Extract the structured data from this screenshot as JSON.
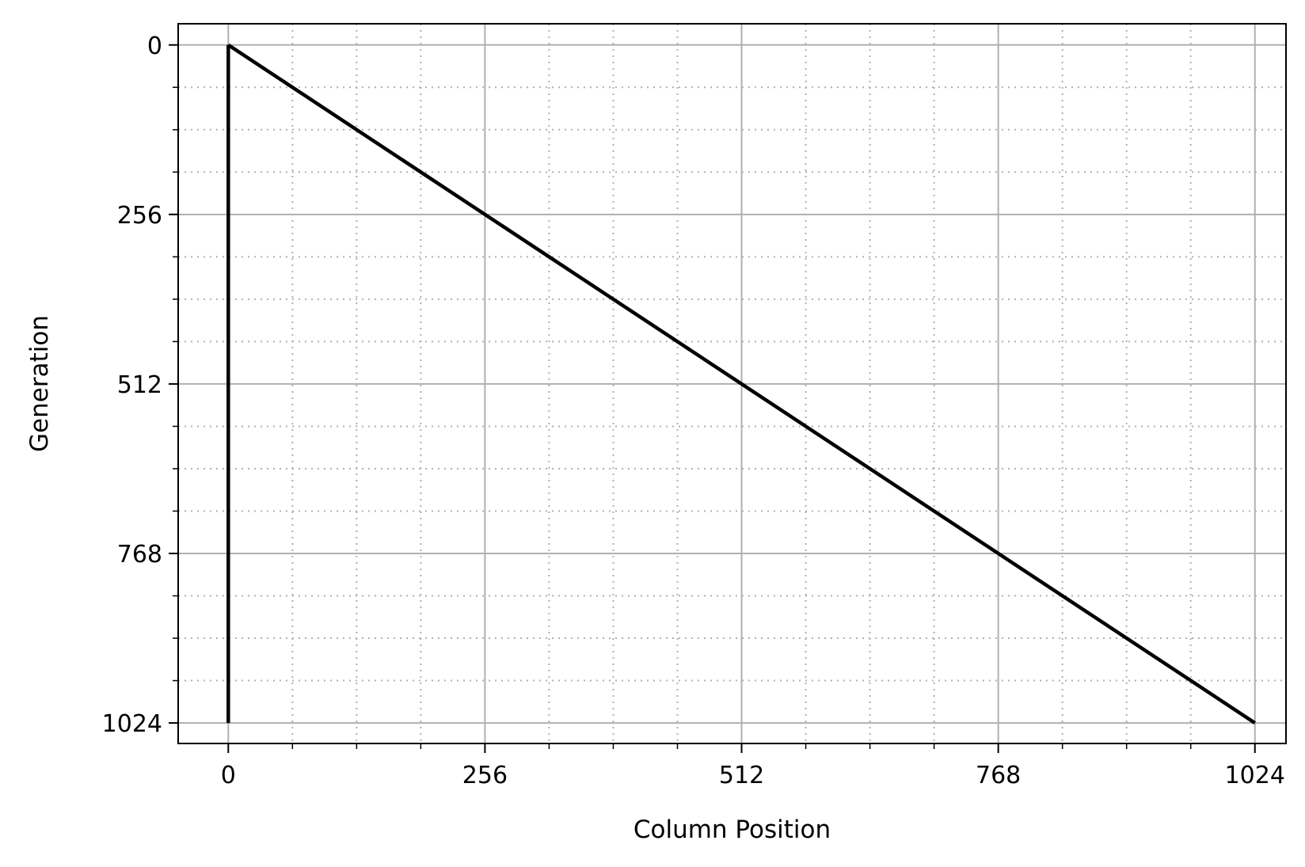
{
  "chart_data": {
    "type": "line",
    "title": "",
    "xlabel": "Column Position",
    "ylabel": "Generation",
    "xlim": [
      -50,
      1055
    ],
    "ylim": [
      1055,
      -32
    ],
    "y_inverted": true,
    "x_ticks": [
      0,
      256,
      512,
      768,
      1024
    ],
    "x_tick_labels": [
      "0",
      "256",
      "512",
      "768",
      "1024"
    ],
    "x_minor_ticks": [
      64,
      128,
      192,
      320,
      384,
      448,
      576,
      640,
      704,
      832,
      896,
      960
    ],
    "y_ticks": [
      0,
      256,
      512,
      768,
      1024
    ],
    "y_tick_labels": [
      "0",
      "256",
      "512",
      "768",
      "1024"
    ],
    "y_minor_ticks": [
      64,
      128,
      192,
      320,
      384,
      448,
      576,
      640,
      704,
      832,
      896,
      960
    ],
    "grid": {
      "major": "solid",
      "minor": "dotted"
    },
    "series": [
      {
        "name": "",
        "color": "#000000",
        "x": [
          0,
          0
        ],
        "y": [
          1024,
          0
        ]
      },
      {
        "name": "",
        "color": "#000000",
        "x": [
          0,
          1024
        ],
        "y": [
          0,
          1024
        ]
      }
    ]
  },
  "colors": {
    "line": "#000000",
    "grid": "#b0b0b0",
    "axes": "#000000",
    "background": "#ffffff"
  }
}
